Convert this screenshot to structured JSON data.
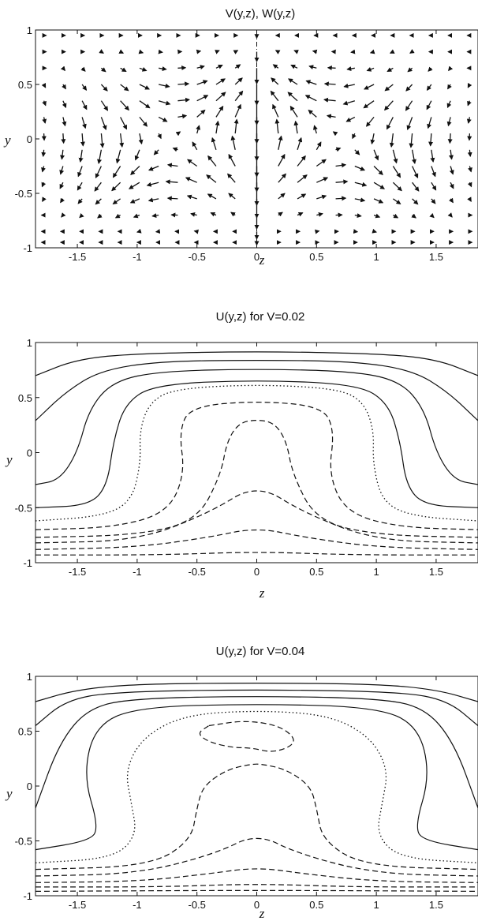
{
  "chart_data": [
    {
      "type": "quiver",
      "title": "V(y,z), W(y,z)",
      "xlabel": "z",
      "ylabel": "y",
      "xlim": [
        -1.85,
        1.85
      ],
      "ylim": [
        -1,
        1
      ],
      "xticks": [
        {
          "value": -1.5,
          "label": "-1.5"
        },
        {
          "value": -1,
          "label": "-1"
        },
        {
          "value": -0.5,
          "label": "-0.5"
        },
        {
          "value": 0,
          "label": "0"
        },
        {
          "value": 0.5,
          "label": "0.5"
        },
        {
          "value": 1,
          "label": "1"
        },
        {
          "value": 1.5,
          "label": "1.5"
        }
      ],
      "yticks": [
        {
          "value": -1,
          "label": "-1"
        },
        {
          "value": -0.5,
          "label": "-0.5"
        },
        {
          "value": 0,
          "label": "0"
        },
        {
          "value": 0.5,
          "label": "0.5"
        },
        {
          "value": 1,
          "label": "1"
        }
      ],
      "vector_field": "two counter-rotating vortices centred near z = ±0.7, y = 0; upward jet along z = 0, leftward/rightward return flow near y = ±0.5, weak flow near the walls y = ±1"
    },
    {
      "type": "contour",
      "title": "U(y,z) for V=0.02",
      "xlabel": "z",
      "ylabel": "y",
      "xlim": [
        -1.85,
        1.85
      ],
      "ylim": [
        -1,
        1
      ],
      "xticks": [
        {
          "value": -1.5,
          "label": "-1.5"
        },
        {
          "value": -1,
          "label": "-1"
        },
        {
          "value": -0.5,
          "label": "-0.5"
        },
        {
          "value": 0,
          "label": "0"
        },
        {
          "value": 0.5,
          "label": "0.5"
        },
        {
          "value": 1,
          "label": "1"
        },
        {
          "value": 1.5,
          "label": "1.5"
        }
      ],
      "yticks": [
        {
          "value": -1,
          "label": "-1"
        },
        {
          "value": -0.5,
          "label": "-0.5"
        },
        {
          "value": 0,
          "label": "0"
        },
        {
          "value": 0.5,
          "label": "0.5"
        },
        {
          "value": 1,
          "label": "1"
        }
      ],
      "contours": [
        {
          "style": "solid",
          "points": [
            [
              -1.85,
              0.7
            ],
            [
              -1.5,
              0.85
            ],
            [
              -1.0,
              0.9
            ],
            [
              0,
              0.92
            ],
            [
              1.0,
              0.9
            ],
            [
              1.5,
              0.85
            ],
            [
              1.85,
              0.7
            ]
          ]
        },
        {
          "style": "solid",
          "points": [
            [
              -1.85,
              0.29
            ],
            [
              -1.6,
              0.55
            ],
            [
              -1.3,
              0.75
            ],
            [
              -0.8,
              0.83
            ],
            [
              0,
              0.84
            ],
            [
              0.8,
              0.83
            ],
            [
              1.3,
              0.75
            ],
            [
              1.6,
              0.55
            ],
            [
              1.85,
              0.29
            ]
          ]
        },
        {
          "style": "solid",
          "points": [
            [
              -1.85,
              -0.29
            ],
            [
              -1.65,
              -0.25
            ],
            [
              -1.5,
              0.0
            ],
            [
              -1.4,
              0.4
            ],
            [
              -1.2,
              0.65
            ],
            [
              -0.8,
              0.74
            ],
            [
              0,
              0.76
            ],
            [
              0.8,
              0.74
            ],
            [
              1.2,
              0.65
            ],
            [
              1.4,
              0.4
            ],
            [
              1.5,
              0.0
            ],
            [
              1.65,
              -0.25
            ],
            [
              1.85,
              -0.29
            ]
          ]
        },
        {
          "style": "solid",
          "points": [
            [
              -1.85,
              -0.5
            ],
            [
              -1.4,
              -0.48
            ],
            [
              -1.25,
              -0.3
            ],
            [
              -1.2,
              0.1
            ],
            [
              -1.1,
              0.45
            ],
            [
              -0.85,
              0.62
            ],
            [
              0,
              0.66
            ],
            [
              0.85,
              0.62
            ],
            [
              1.1,
              0.45
            ],
            [
              1.2,
              0.1
            ],
            [
              1.25,
              -0.3
            ],
            [
              1.4,
              -0.48
            ],
            [
              1.85,
              -0.5
            ]
          ]
        },
        {
          "style": "dotted",
          "points": [
            [
              -1.85,
              -0.62
            ],
            [
              -1.3,
              -0.58
            ],
            [
              -1.05,
              -0.45
            ],
            [
              -0.97,
              -0.1
            ],
            [
              -0.98,
              0.2
            ],
            [
              -0.9,
              0.45
            ],
            [
              -0.7,
              0.58
            ],
            [
              0,
              0.62
            ],
            [
              0.7,
              0.58
            ],
            [
              0.9,
              0.45
            ],
            [
              0.98,
              0.2
            ],
            [
              0.97,
              -0.1
            ],
            [
              1.05,
              -0.45
            ],
            [
              1.3,
              -0.58
            ],
            [
              1.85,
              -0.62
            ]
          ]
        },
        {
          "style": "dashed",
          "points": [
            [
              -1.85,
              -0.7
            ],
            [
              -1.2,
              -0.68
            ],
            [
              -0.75,
              -0.55
            ],
            [
              -0.6,
              -0.2
            ],
            [
              -0.65,
              0.2
            ],
            [
              -0.55,
              0.42
            ],
            [
              0,
              0.47
            ],
            [
              0.55,
              0.42
            ],
            [
              0.65,
              0.2
            ],
            [
              0.6,
              -0.2
            ],
            [
              0.75,
              -0.55
            ],
            [
              1.2,
              -0.68
            ],
            [
              1.85,
              -0.7
            ]
          ]
        },
        {
          "style": "dashed",
          "points": [
            [
              -1.85,
              -0.77
            ],
            [
              -1.0,
              -0.75
            ],
            [
              -0.5,
              -0.62
            ],
            [
              -0.3,
              -0.2
            ],
            [
              -0.25,
              0.1
            ],
            [
              -0.15,
              0.27
            ],
            [
              0,
              0.3
            ],
            [
              0.15,
              0.27
            ],
            [
              0.25,
              0.1
            ],
            [
              0.3,
              -0.2
            ],
            [
              0.5,
              -0.62
            ],
            [
              1.0,
              -0.75
            ],
            [
              1.85,
              -0.77
            ]
          ]
        },
        {
          "style": "dashed",
          "points": [
            [
              -1.85,
              -0.82
            ],
            [
              -1.0,
              -0.8
            ],
            [
              -0.4,
              -0.55
            ],
            [
              0,
              -0.28
            ],
            [
              0.4,
              -0.55
            ],
            [
              1.0,
              -0.8
            ],
            [
              1.85,
              -0.82
            ]
          ]
        },
        {
          "style": "dashed",
          "points": [
            [
              -1.85,
              -0.88
            ],
            [
              -1.0,
              -0.86
            ],
            [
              -0.4,
              -0.77
            ],
            [
              0,
              -0.68
            ],
            [
              0.4,
              -0.77
            ],
            [
              1.0,
              -0.86
            ],
            [
              1.85,
              -0.88
            ]
          ]
        },
        {
          "style": "dashed",
          "points": [
            [
              -1.85,
              -0.93
            ],
            [
              -0.8,
              -0.93
            ],
            [
              0,
              -0.9
            ],
            [
              0.8,
              -0.93
            ],
            [
              1.85,
              -0.93
            ]
          ]
        }
      ]
    },
    {
      "type": "contour",
      "title": "U(y,z) for V=0.04",
      "xlabel": "z",
      "ylabel": "y",
      "xlim": [
        -1.85,
        1.85
      ],
      "ylim": [
        -1,
        1
      ],
      "xticks": [
        {
          "value": -1.5,
          "label": "-1.5"
        },
        {
          "value": -1,
          "label": "-1"
        },
        {
          "value": -0.5,
          "label": "-0.5"
        },
        {
          "value": 0,
          "label": "0"
        },
        {
          "value": 0.5,
          "label": "0.5"
        },
        {
          "value": 1,
          "label": "1"
        },
        {
          "value": 1.5,
          "label": "1.5"
        }
      ],
      "yticks": [
        {
          "value": -1,
          "label": "-1"
        },
        {
          "value": -0.5,
          "label": "-0.5"
        },
        {
          "value": 0,
          "label": "0"
        },
        {
          "value": 0.5,
          "label": "0.5"
        },
        {
          "value": 1,
          "label": "1"
        }
      ],
      "contours": [
        {
          "style": "solid",
          "points": [
            [
              -1.85,
              0.77
            ],
            [
              -1.5,
              0.88
            ],
            [
              -1.0,
              0.93
            ],
            [
              0,
              0.94
            ],
            [
              1.0,
              0.93
            ],
            [
              1.5,
              0.88
            ],
            [
              1.85,
              0.77
            ]
          ]
        },
        {
          "style": "solid",
          "points": [
            [
              -1.85,
              0.55
            ],
            [
              -1.6,
              0.78
            ],
            [
              -1.2,
              0.86
            ],
            [
              0,
              0.88
            ],
            [
              1.2,
              0.86
            ],
            [
              1.6,
              0.78
            ],
            [
              1.85,
              0.55
            ]
          ]
        },
        {
          "style": "solid",
          "points": [
            [
              -1.85,
              -0.2
            ],
            [
              -1.65,
              0.4
            ],
            [
              -1.4,
              0.72
            ],
            [
              -1.0,
              0.8
            ],
            [
              0,
              0.82
            ],
            [
              1.0,
              0.8
            ],
            [
              1.4,
              0.72
            ],
            [
              1.65,
              0.4
            ],
            [
              1.85,
              -0.2
            ]
          ]
        },
        {
          "style": "solid",
          "points": [
            [
              -1.85,
              -0.58
            ],
            [
              -1.4,
              -0.5
            ],
            [
              -1.32,
              -0.38
            ],
            [
              -1.45,
              0.1
            ],
            [
              -1.35,
              0.55
            ],
            [
              -1.0,
              0.72
            ],
            [
              0,
              0.75
            ],
            [
              1.0,
              0.72
            ],
            [
              1.35,
              0.55
            ],
            [
              1.45,
              0.1
            ],
            [
              1.32,
              -0.38
            ],
            [
              1.4,
              -0.5
            ],
            [
              1.85,
              -0.58
            ]
          ]
        },
        {
          "style": "dotted",
          "points": [
            [
              -1.85,
              -0.7
            ],
            [
              -1.2,
              -0.66
            ],
            [
              -1.0,
              -0.45
            ],
            [
              -1.05,
              -0.15
            ],
            [
              -1.1,
              0.15
            ],
            [
              -0.95,
              0.45
            ],
            [
              -0.6,
              0.65
            ],
            [
              0,
              0.69
            ],
            [
              0.6,
              0.65
            ],
            [
              0.95,
              0.45
            ],
            [
              1.1,
              0.15
            ],
            [
              1.05,
              -0.15
            ],
            [
              1.0,
              -0.45
            ],
            [
              1.2,
              -0.66
            ],
            [
              1.85,
              -0.7
            ]
          ]
        },
        {
          "style": "dashed",
          "points": [
            [
              -1.85,
              -0.76
            ],
            [
              -0.9,
              -0.73
            ],
            [
              -0.55,
              -0.5
            ],
            [
              -0.5,
              -0.2
            ],
            [
              -0.45,
              0.0
            ],
            [
              -0.25,
              0.15
            ],
            [
              -0.05,
              0.2
            ],
            [
              0.05,
              0.2
            ],
            [
              0.25,
              0.15
            ],
            [
              0.45,
              0.0
            ],
            [
              0.5,
              -0.2
            ],
            [
              0.55,
              -0.5
            ],
            [
              0.9,
              -0.73
            ],
            [
              1.85,
              -0.76
            ]
          ]
        },
        {
          "style": "dashed",
          "points": [
            [
              -0.4,
              0.55
            ],
            [
              -0.1,
              0.6
            ],
            [
              0.2,
              0.55
            ],
            [
              0.35,
              0.4
            ],
            [
              0.15,
              0.3
            ],
            [
              -0.05,
              0.35
            ],
            [
              -0.2,
              0.35
            ],
            [
              -0.4,
              0.4
            ],
            [
              -0.5,
              0.48
            ],
            [
              -0.4,
              0.55
            ]
          ]
        },
        {
          "style": "dashed",
          "points": [
            [
              -1.85,
              -0.82
            ],
            [
              -1.0,
              -0.8
            ],
            [
              -0.35,
              -0.62
            ],
            [
              0,
              -0.43
            ],
            [
              0.35,
              -0.62
            ],
            [
              1.0,
              -0.8
            ],
            [
              1.85,
              -0.82
            ]
          ]
        },
        {
          "style": "dashed",
          "points": [
            [
              -1.85,
              -0.88
            ],
            [
              -1.0,
              -0.87
            ],
            [
              -0.4,
              -0.8
            ],
            [
              0,
              -0.74
            ],
            [
              0.4,
              -0.8
            ],
            [
              1.0,
              -0.87
            ],
            [
              1.85,
              -0.88
            ]
          ]
        },
        {
          "style": "dashed",
          "points": [
            [
              -1.85,
              -0.92
            ],
            [
              -0.8,
              -0.92
            ],
            [
              0,
              -0.89
            ],
            [
              0.8,
              -0.92
            ],
            [
              1.85,
              -0.92
            ]
          ]
        },
        {
          "style": "dashed",
          "points": [
            [
              -1.85,
              -0.96
            ],
            [
              0,
              -0.95
            ],
            [
              1.85,
              -0.96
            ]
          ]
        }
      ]
    }
  ]
}
